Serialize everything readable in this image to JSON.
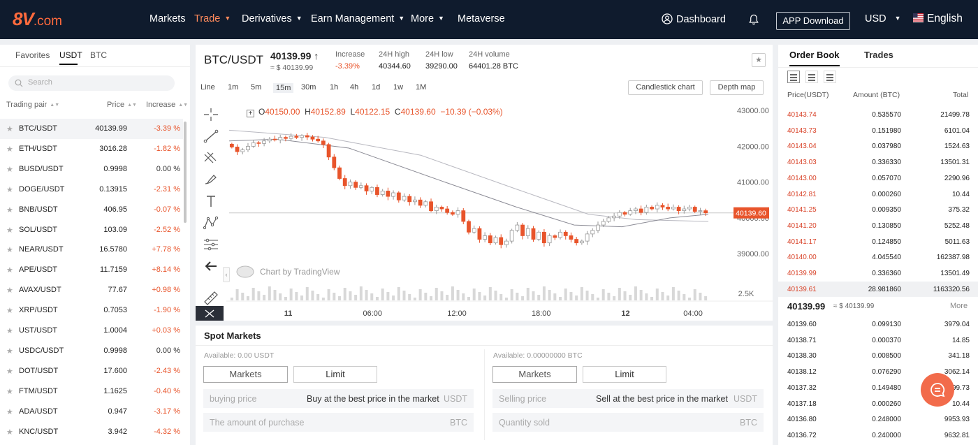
{
  "header": {
    "logo_main": "8V",
    "logo_suffix": ".com",
    "nav": [
      {
        "label": "Markets",
        "dropdown": false,
        "active": false
      },
      {
        "label": "Trade",
        "dropdown": true,
        "active": true
      },
      {
        "label": "Derivatives",
        "dropdown": true,
        "active": false
      },
      {
        "label": "Earn Management",
        "dropdown": true,
        "active": false
      },
      {
        "label": "More",
        "dropdown": true,
        "active": false
      },
      {
        "label": "Metaverse",
        "dropdown": false,
        "active": false
      }
    ],
    "dashboard": "Dashboard",
    "app_download": "APP Download",
    "currency": "USD",
    "language": "English"
  },
  "markets_panel": {
    "tabs": [
      "Favorites",
      "USDT",
      "BTC"
    ],
    "search_placeholder": "Search",
    "col_pair": "Trading pair",
    "col_price": "Price",
    "col_change": "Increase",
    "pairs": [
      {
        "name": "BTC/USDT",
        "price": "40139.99",
        "change": "-3.39 %"
      },
      {
        "name": "ETH/USDT",
        "price": "3016.28",
        "change": "-1.82 %"
      },
      {
        "name": "BUSD/USDT",
        "price": "0.9998",
        "change": "0.00 %"
      },
      {
        "name": "DOGE/USDT",
        "price": "0.13915",
        "change": "-2.31 %"
      },
      {
        "name": "BNB/USDT",
        "price": "406.95",
        "change": "-0.07 %"
      },
      {
        "name": "SOL/USDT",
        "price": "103.09",
        "change": "-2.52 %"
      },
      {
        "name": "NEAR/USDT",
        "price": "16.5780",
        "change": "+7.78 %"
      },
      {
        "name": "APE/USDT",
        "price": "11.7159",
        "change": "+8.14 %"
      },
      {
        "name": "AVAX/USDT",
        "price": "77.67",
        "change": "+0.98 %"
      },
      {
        "name": "XRP/USDT",
        "price": "0.7053",
        "change": "-1.90 %"
      },
      {
        "name": "UST/USDT",
        "price": "1.0004",
        "change": "+0.03 %"
      },
      {
        "name": "USDC/USDT",
        "price": "0.9998",
        "change": "0.00 %"
      },
      {
        "name": "DOT/USDT",
        "price": "17.600",
        "change": "-2.43 %"
      },
      {
        "name": "FTM/USDT",
        "price": "1.1625",
        "change": "-0.40 %"
      },
      {
        "name": "ADA/USDT",
        "price": "0.947",
        "change": "-3.17 %"
      },
      {
        "name": "KNC/USDT",
        "price": "3.942",
        "change": "-4.32 %"
      }
    ]
  },
  "ticker": {
    "pair": "BTC/USDT",
    "last": "40139.99",
    "last_arrow": "↑",
    "last_usd": "≈ $ 40139.99",
    "stats": [
      {
        "label": "Increase",
        "value": "-3.39%"
      },
      {
        "label": "24H high",
        "value": "40344.60"
      },
      {
        "label": "24H low",
        "value": "39290.00"
      },
      {
        "label": "24H volume",
        "value": "64401.28 BTC"
      }
    ]
  },
  "chart_toolbar": {
    "intervals": [
      "Line",
      "1m",
      "5m",
      "15m",
      "30m",
      "1h",
      "4h",
      "1d",
      "1w",
      "1M"
    ],
    "active_interval": "15m",
    "candlestick_btn": "Candlestick chart",
    "depth_btn": "Depth map"
  },
  "chart_legend": {
    "o_label": "O",
    "o": "40150.00",
    "h_label": "H",
    "h": "40152.89",
    "l_label": "L",
    "l": "40122.15",
    "c_label": "C",
    "c": "40139.60",
    "change": "−10.39 (−0.03%)"
  },
  "chart_data": {
    "type": "candlestick",
    "watermark": "Chart by TradingView",
    "y_ticks": [
      "43000.00",
      "42000.00",
      "41000.00",
      "40000.00",
      "39000.00"
    ],
    "ylim": [
      38200,
      43200
    ],
    "current_price_label": "40139.60",
    "current_price": 40139.6,
    "volume_tick": "2.5K",
    "x_ticks": [
      {
        "label": "11",
        "t": 0.14
      },
      {
        "label": "06:00",
        "t": 0.34
      },
      {
        "label": "12:00",
        "t": 0.54
      },
      {
        "label": "18:00",
        "t": 0.74
      },
      {
        "label": "12",
        "t": 0.94
      },
      {
        "label": "04:00",
        "t": 1.1
      }
    ],
    "closes": [
      41980,
      41850,
      41900,
      42000,
      42100,
      42080,
      42150,
      42200,
      42180,
      42250,
      42220,
      42280,
      42250,
      42300,
      42260,
      42200,
      42150,
      42050,
      41700,
      41400,
      41100,
      40900,
      41000,
      40850,
      40900,
      40750,
      40850,
      40650,
      40750,
      40600,
      40700,
      40500,
      40600,
      40450,
      40500,
      40350,
      40450,
      40200,
      40300,
      40250,
      40150,
      40100,
      40200,
      39900,
      39600,
      39700,
      39400,
      39500,
      39300,
      39450,
      39250,
      39350,
      39650,
      39800,
      39500,
      39700,
      39400,
      39600,
      39300,
      39500,
      39450,
      39600,
      39500,
      39400,
      39300,
      39350,
      39550,
      39650,
      39800,
      39900,
      40000,
      40050,
      40150,
      40100,
      40200,
      40250,
      40150,
      40300,
      40250,
      40350,
      40300,
      40250,
      40300,
      40200,
      40250,
      40300,
      40180,
      40200,
      40139.6
    ],
    "moving_averages": [
      {
        "color": "#b8b8c0",
        "points": [
          [
            0,
            42450
          ],
          [
            0.2,
            42250
          ],
          [
            0.4,
            41750
          ],
          [
            0.6,
            40800
          ],
          [
            0.75,
            40100
          ],
          [
            0.85,
            39950
          ],
          [
            1,
            39900
          ]
        ]
      },
      {
        "color": "#8c8c96",
        "points": [
          [
            0,
            42150
          ],
          [
            0.1,
            42200
          ],
          [
            0.25,
            41950
          ],
          [
            0.45,
            41000
          ],
          [
            0.6,
            40300
          ],
          [
            0.72,
            39800
          ],
          [
            0.82,
            39750
          ],
          [
            0.92,
            40000
          ],
          [
            1,
            40100
          ]
        ]
      }
    ]
  },
  "spot": {
    "title": "Spot Markets",
    "buy": {
      "available": "Available: 0.00 USDT",
      "tab1": "Markets",
      "tab2": "Limit",
      "price_ph": "buying price",
      "price_note": "Buy at the best price in the market",
      "price_unit": "USDT",
      "amount_ph": "The amount of purchase",
      "amount_unit": "BTC"
    },
    "sell": {
      "available": "Available: 0.00000000 BTC",
      "tab1": "Markets",
      "tab2": "Limit",
      "price_ph": "Selling price",
      "price_note": "Sell at the best price in the market",
      "price_unit": "USDT",
      "amount_ph": "Quantity sold",
      "amount_unit": "BTC"
    }
  },
  "orderbook": {
    "tab1": "Order Book",
    "tab2": "Trades",
    "col_price": "Price(USDT)",
    "col_amount": "Amount (BTC)",
    "col_total": "Total",
    "asks": [
      {
        "p": "40143.74",
        "a": "0.535570",
        "t": "21499.78"
      },
      {
        "p": "40143.73",
        "a": "0.151980",
        "t": "6101.04"
      },
      {
        "p": "40143.04",
        "a": "0.037980",
        "t": "1524.63"
      },
      {
        "p": "40143.03",
        "a": "0.336330",
        "t": "13501.31"
      },
      {
        "p": "40143.00",
        "a": "0.057070",
        "t": "2290.96"
      },
      {
        "p": "40142.81",
        "a": "0.000260",
        "t": "10.44"
      },
      {
        "p": "40141.25",
        "a": "0.009350",
        "t": "375.32"
      },
      {
        "p": "40141.20",
        "a": "0.130850",
        "t": "5252.48"
      },
      {
        "p": "40141.17",
        "a": "0.124850",
        "t": "5011.63"
      },
      {
        "p": "40140.00",
        "a": "4.045540",
        "t": "162387.98"
      },
      {
        "p": "40139.99",
        "a": "0.336360",
        "t": "13501.49"
      },
      {
        "p": "40139.61",
        "a": "28.981860",
        "t": "1163320.56"
      }
    ],
    "mid_price": "40139.99",
    "mid_usd": "≈ $ 40139.99",
    "more": "More",
    "bids": [
      {
        "p": "40139.60",
        "a": "0.099130",
        "t": "3979.04"
      },
      {
        "p": "40138.71",
        "a": "0.000370",
        "t": "14.85"
      },
      {
        "p": "40138.30",
        "a": "0.008500",
        "t": "341.18"
      },
      {
        "p": "40138.12",
        "a": "0.076290",
        "t": "3062.14"
      },
      {
        "p": "40137.32",
        "a": "0.149480",
        "t": "5999.73"
      },
      {
        "p": "40137.18",
        "a": "0.000260",
        "t": "10.44"
      },
      {
        "p": "40136.80",
        "a": "0.248000",
        "t": "9953.93"
      },
      {
        "p": "40136.72",
        "a": "0.240000",
        "t": "9632.81"
      }
    ]
  },
  "colors": {
    "up": "#c8c8c8",
    "down": "#e8542b",
    "accent": "#f26b4b",
    "header_bg": "#0f1b2d"
  }
}
